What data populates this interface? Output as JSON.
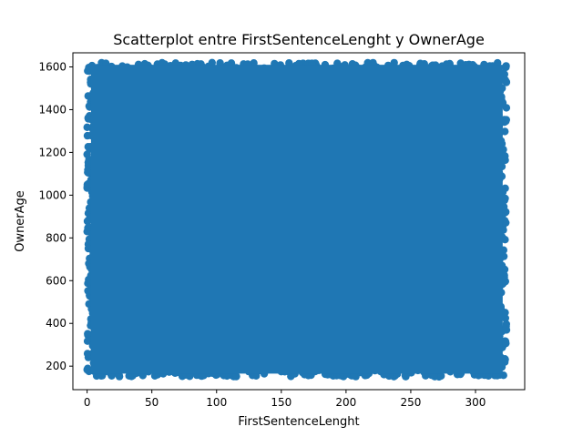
{
  "chart_data": {
    "type": "scatter",
    "title": "Scatterplot entre FirstSentenceLenght y OwnerAge",
    "xlabel": "FirstSentenceLenght",
    "ylabel": "OwnerAge",
    "xlim": [
      -11,
      338
    ],
    "ylim": [
      90,
      1666
    ],
    "xticks": [
      0,
      50,
      100,
      150,
      200,
      250,
      300
    ],
    "yticks": [
      200,
      400,
      600,
      800,
      1000,
      1200,
      1400,
      1600
    ],
    "grid": false,
    "legend": "none",
    "marker_color": "#1f77b4",
    "points_description": "dense uniform cloud",
    "x_range": [
      0,
      324
    ],
    "y_range": [
      150,
      1620
    ]
  }
}
